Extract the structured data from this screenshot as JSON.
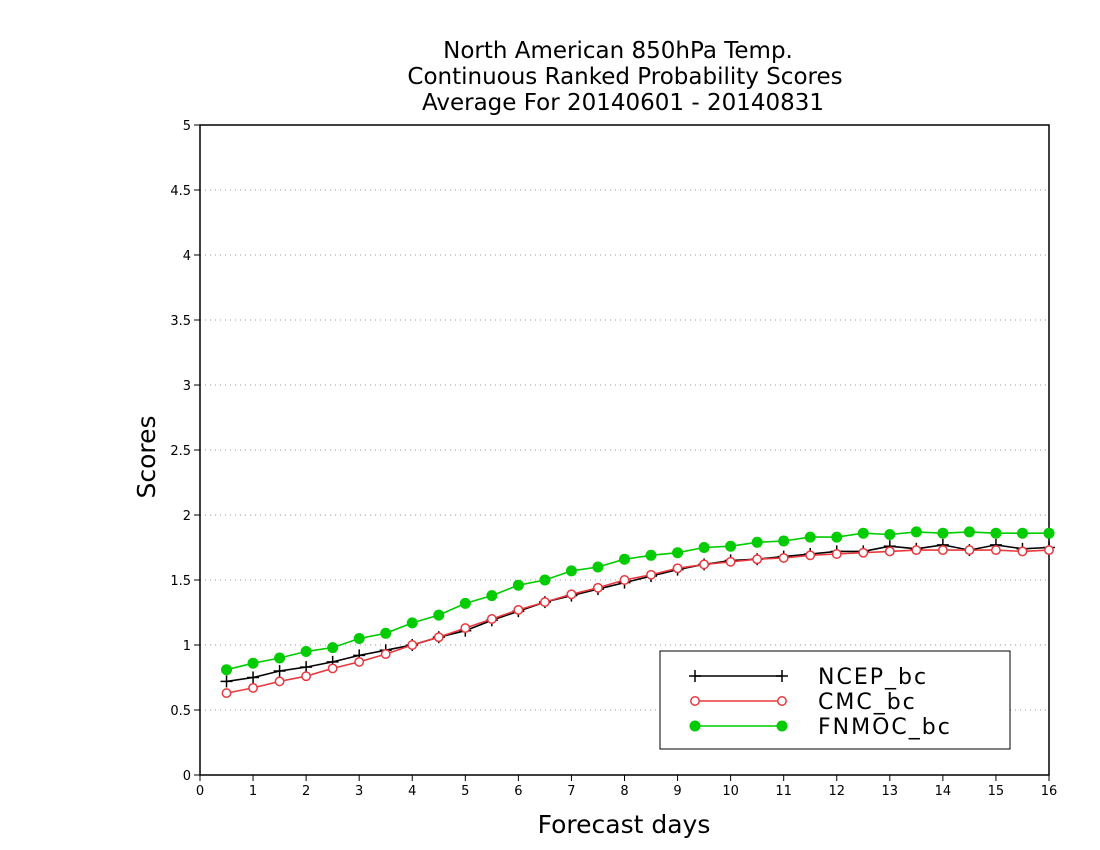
{
  "chart_data": {
    "type": "line",
    "title": [
      "North American 850hPa Temp.",
      "Continuous Ranked Probability Scores",
      "Average For 20140601 - 20140831"
    ],
    "xlabel": "Forecast days",
    "ylabel": "Scores",
    "xlim": [
      0,
      16
    ],
    "ylim": [
      0,
      5
    ],
    "xticks": [
      "0",
      "1",
      "2",
      "3",
      "4",
      "5",
      "6",
      "7",
      "8",
      "9",
      "10",
      "11",
      "12",
      "13",
      "14",
      "15",
      "16"
    ],
    "yticks": [
      "0",
      "0.5",
      "1",
      "1.5",
      "2",
      "2.5",
      "3",
      "3.5",
      "4",
      "4.5",
      "5"
    ],
    "grid": "horizontal dotted",
    "legend_position": "bottom-right",
    "x": [
      0.5,
      1,
      1.5,
      2,
      2.5,
      3,
      3.5,
      4,
      4.5,
      5,
      5.5,
      6,
      6.5,
      7,
      7.5,
      8,
      8.5,
      9,
      9.5,
      10,
      10.5,
      11,
      11.5,
      12,
      12.5,
      13,
      13.5,
      14,
      14.5,
      15,
      15.5,
      16
    ],
    "series": [
      {
        "name": "NCEP_bc",
        "color": "#000000",
        "marker": "plus",
        "values": [
          0.72,
          0.75,
          0.8,
          0.83,
          0.87,
          0.92,
          0.96,
          1.0,
          1.06,
          1.11,
          1.19,
          1.26,
          1.33,
          1.38,
          1.43,
          1.48,
          1.53,
          1.58,
          1.62,
          1.65,
          1.66,
          1.68,
          1.7,
          1.72,
          1.72,
          1.76,
          1.74,
          1.77,
          1.73,
          1.77,
          1.74,
          1.75
        ]
      },
      {
        "name": "CMC_bc",
        "color": "#e8383d",
        "marker": "open-circle",
        "values": [
          0.63,
          0.67,
          0.72,
          0.76,
          0.82,
          0.87,
          0.93,
          1.0,
          1.06,
          1.13,
          1.2,
          1.27,
          1.33,
          1.39,
          1.44,
          1.5,
          1.54,
          1.59,
          1.62,
          1.64,
          1.66,
          1.67,
          1.69,
          1.7,
          1.71,
          1.72,
          1.73,
          1.73,
          1.73,
          1.73,
          1.72,
          1.73
        ]
      },
      {
        "name": "FNMOC_bc",
        "color": "#00cc00",
        "marker": "filled-circle",
        "values": [
          0.81,
          0.86,
          0.9,
          0.95,
          0.98,
          1.05,
          1.09,
          1.17,
          1.23,
          1.32,
          1.38,
          1.46,
          1.5,
          1.57,
          1.6,
          1.66,
          1.69,
          1.71,
          1.75,
          1.76,
          1.79,
          1.8,
          1.83,
          1.83,
          1.86,
          1.85,
          1.87,
          1.86,
          1.87,
          1.86,
          1.86,
          1.86
        ]
      }
    ]
  }
}
